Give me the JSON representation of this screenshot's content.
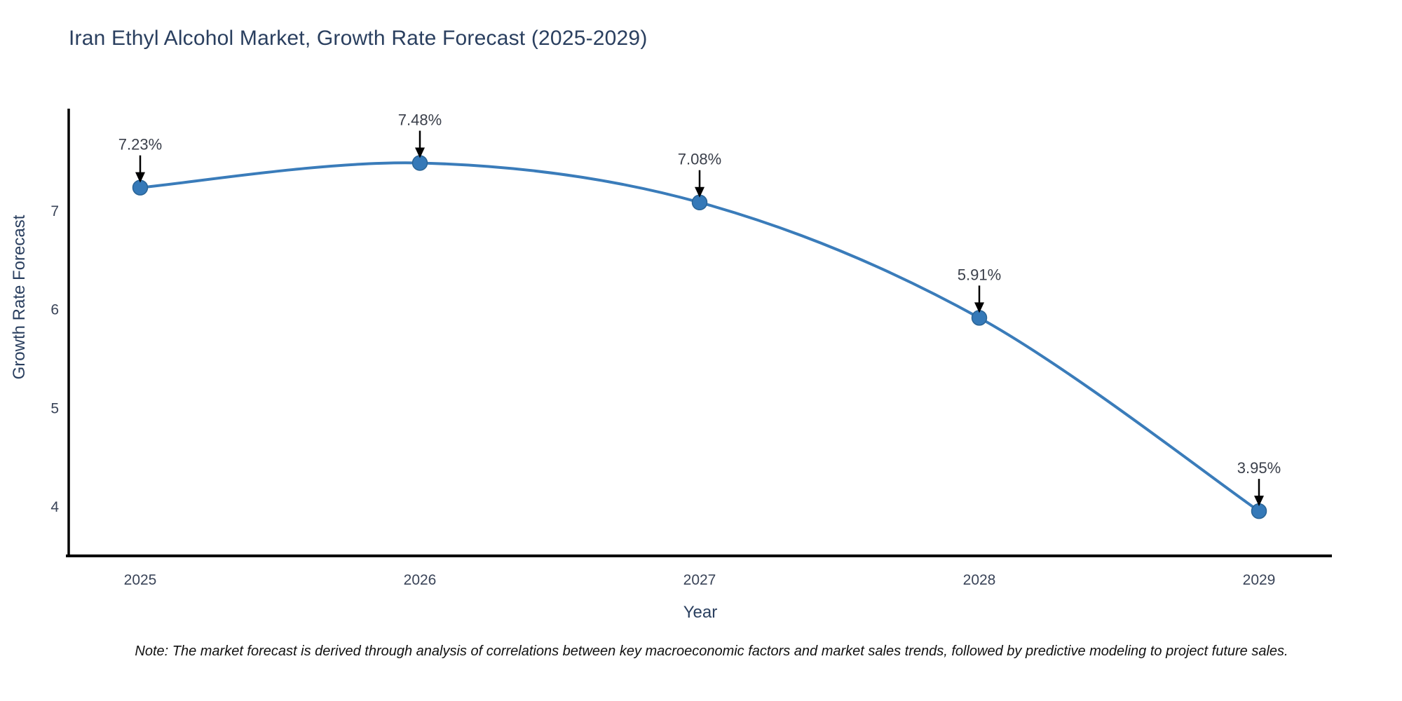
{
  "title": "Iran Ethyl Alcohol Market, Growth Rate Forecast (2025-2029)",
  "note": "Note: The market forecast is derived through analysis of correlations between key macroeconomic factors and market sales trends, followed by predictive modeling to project future sales.",
  "chart_data": {
    "type": "line",
    "curve": "spline",
    "x": [
      2025,
      2026,
      2027,
      2028,
      2029
    ],
    "series": [
      {
        "name": "Growth Rate Forecast",
        "values": [
          7.23,
          7.48,
          7.08,
          5.91,
          3.95
        ]
      }
    ],
    "point_labels": [
      "7.23%",
      "7.48%",
      "7.08%",
      "5.91%",
      "3.95%"
    ],
    "title": "Iran Ethyl Alcohol Market, Growth Rate Forecast (2025-2029)",
    "xlabel": "Year",
    "ylabel": "Growth Rate Forecast",
    "xticks": [
      "2025",
      "2026",
      "2027",
      "2028",
      "2029"
    ],
    "yticks": [
      4,
      5,
      6,
      7
    ],
    "xlim": [
      2024.74,
      2029.26
    ],
    "ylim": [
      3.48,
      8.03
    ],
    "grid": false,
    "legend": "none",
    "colors": {
      "line": "#3a7cba",
      "marker_fill": "#3579b8",
      "marker_edge": "#2a6496",
      "axis_line": "#000000",
      "arrow": "#000000",
      "title_text": "#2a3f5f",
      "tick_text": "#3a4458",
      "annotation_text": "#3a3f4a",
      "note_text": "#111111",
      "background": "#ffffff"
    }
  }
}
